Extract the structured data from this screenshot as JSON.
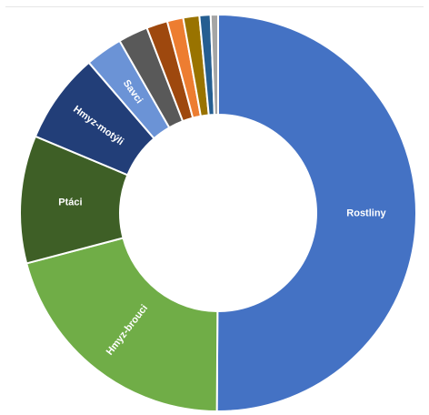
{
  "chart_data": {
    "type": "pie",
    "donut": true,
    "title": "",
    "legend": "none",
    "slices": [
      {
        "label": "Rostliny",
        "value": 49.6,
        "color": "#4472C4",
        "show_label": true
      },
      {
        "label": "Hmyz-brouci",
        "value": 20.6,
        "color": "#70AD47",
        "show_label": true
      },
      {
        "label": "Ptáci",
        "value": 10.3,
        "color": "#3E5F26",
        "show_label": true
      },
      {
        "label": "Hmyz-motýli",
        "value": 7.3,
        "color": "#223E78",
        "show_label": true
      },
      {
        "label": "Savci",
        "value": 3.0,
        "color": "#6B93D6",
        "show_label": true
      },
      {
        "label": "",
        "value": 2.4,
        "color": "#595959",
        "show_label": false
      },
      {
        "label": "",
        "value": 1.7,
        "color": "#9E480E",
        "show_label": false
      },
      {
        "label": "",
        "value": 1.3,
        "color": "#ED7D31",
        "show_label": false
      },
      {
        "label": "",
        "value": 1.3,
        "color": "#997300",
        "show_label": false
      },
      {
        "label": "",
        "value": 0.9,
        "color": "#255E91",
        "show_label": false
      },
      {
        "label": "",
        "value": 0.6,
        "color": "#A5A5A5",
        "show_label": false
      }
    ]
  }
}
